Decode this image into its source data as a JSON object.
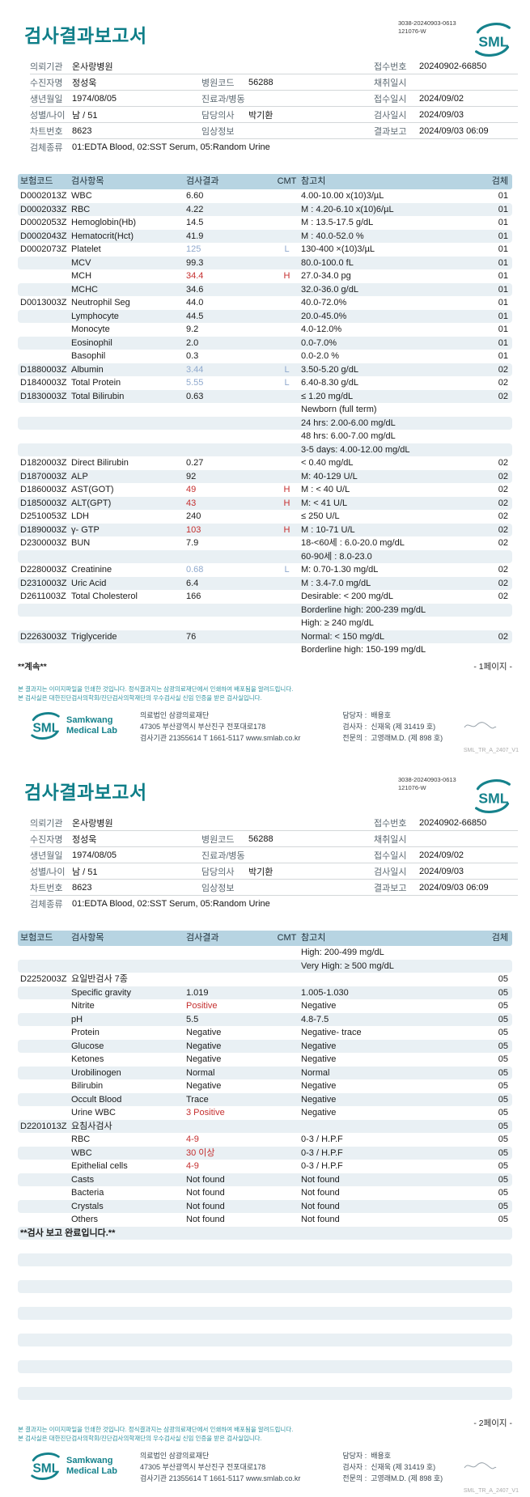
{
  "report": {
    "title": "검사결과보고서",
    "barcode_line1": "3038-20240903-0613",
    "barcode_line2": "121076-W",
    "logo_text": "SML",
    "patient": {
      "requesting_org_label": "의뢰기관",
      "requesting_org_value": "온사랑병원",
      "receipt_no_label": "접수번호",
      "receipt_no_value": "20240902-66850",
      "patient_name_label": "수진자명",
      "patient_name_value": "정성욱",
      "hospital_code_label": "병원코드",
      "hospital_code_value": "56288",
      "collection_dt_label": "채취일시",
      "collection_dt_value": "",
      "birth_date_label": "생년월일",
      "birth_date_value": "1974/08/05",
      "dept_ward_label": "진료과/병동",
      "dept_ward_value": "",
      "receipt_dt_label": "접수일시",
      "receipt_dt_value": "2024/09/02",
      "sex_age_label": "성별/나이",
      "sex_age_value": "남 / 51",
      "doctor_label": "담당의사",
      "doctor_value": "박기환",
      "test_dt_label": "검사일시",
      "test_dt_value": "2024/09/03",
      "chart_no_label": "차트번호",
      "chart_no_value": "8623",
      "clinical_info_label": "임상정보",
      "clinical_info_value": "",
      "report_dt_label": "결과보고",
      "report_dt_value": "2024/09/03 06:09",
      "specimen_label": "검체종류",
      "specimen_value": "01:EDTA Blood, 02:SST Serum, 05:Random Urine"
    },
    "columns": {
      "code": "보험코드",
      "item": "검사항목",
      "result": "검사결과",
      "cmt": "CMT",
      "ref": "참고치",
      "specimen": "검체"
    }
  },
  "pages": [
    {
      "continue_note": "**계속**",
      "page_label": "- 1페이지 -",
      "trailing_empty_rows": 0,
      "rows": [
        {
          "c": "D0002013Z",
          "i": "WBC",
          "r": "6.60",
          "f": "",
          "ref": "4.00-10.00 x(10)3/µL",
          "s": "01",
          "st": "n"
        },
        {
          "c": "D0002033Z",
          "i": "RBC",
          "r": "4.22",
          "f": "",
          "ref": "M : 4.20-6.10 x(10)6/µL",
          "s": "01",
          "st": "n"
        },
        {
          "c": "D0002053Z",
          "i": "Hemoglobin(Hb)",
          "r": "14.5",
          "f": "",
          "ref": "M : 13.5-17.5 g/dL",
          "s": "01",
          "st": "n"
        },
        {
          "c": "D0002043Z",
          "i": "Hematocrit(Hct)",
          "r": "41.9",
          "f": "",
          "ref": "M : 40.0-52.0 %",
          "s": "01",
          "st": "n"
        },
        {
          "c": "D0002073Z",
          "i": "Platelet",
          "r": "125",
          "f": "L",
          "ref": "130-400 ×(10)3/µL",
          "s": "01",
          "st": "l"
        },
        {
          "c": "",
          "i": "MCV",
          "r": "99.3",
          "f": "",
          "ref": "80.0-100.0 fL",
          "s": "01",
          "st": "n"
        },
        {
          "c": "",
          "i": "MCH",
          "r": "34.4",
          "f": "H",
          "ref": "27.0-34.0 pg",
          "s": "01",
          "st": "h"
        },
        {
          "c": "",
          "i": "MCHC",
          "r": "34.6",
          "f": "",
          "ref": "32.0-36.0 g/dL",
          "s": "01",
          "st": "n"
        },
        {
          "c": "D0013003Z",
          "i": "Neutrophil Seg",
          "r": "44.0",
          "f": "",
          "ref": "40.0-72.0%",
          "s": "01",
          "st": "n"
        },
        {
          "c": "",
          "i": "Lymphocyte",
          "r": "44.5",
          "f": "",
          "ref": "20.0-45.0%",
          "s": "01",
          "st": "n"
        },
        {
          "c": "",
          "i": "Monocyte",
          "r": "9.2",
          "f": "",
          "ref": "4.0-12.0%",
          "s": "01",
          "st": "n"
        },
        {
          "c": "",
          "i": "Eosinophil",
          "r": "2.0",
          "f": "",
          "ref": "0.0-7.0%",
          "s": "01",
          "st": "n"
        },
        {
          "c": "",
          "i": "Basophil",
          "r": "0.3",
          "f": "",
          "ref": "0.0-2.0 %",
          "s": "01",
          "st": "n"
        },
        {
          "c": "D1880003Z",
          "i": "Albumin",
          "r": "3.44",
          "f": "L",
          "ref": "3.50-5.20 g/dL",
          "s": "02",
          "st": "l"
        },
        {
          "c": "D1840003Z",
          "i": "Total Protein",
          "r": "5.55",
          "f": "L",
          "ref": "6.40-8.30 g/dL",
          "s": "02",
          "st": "l"
        },
        {
          "c": "D1830003Z",
          "i": "Total Bilirubin",
          "r": "0.63",
          "f": "",
          "ref": "≤ 1.20 mg/dL",
          "s": "02",
          "st": "n"
        },
        {
          "c": "",
          "i": "",
          "r": "",
          "f": "",
          "ref": "Newborn (full term)",
          "s": "",
          "st": "n"
        },
        {
          "c": "",
          "i": "",
          "r": "",
          "f": "",
          "ref": "24 hrs: 2.00-6.00 mg/dL",
          "s": "",
          "st": "n"
        },
        {
          "c": "",
          "i": "",
          "r": "",
          "f": "",
          "ref": "48 hrs: 6.00-7.00 mg/dL",
          "s": "",
          "st": "n"
        },
        {
          "c": "",
          "i": "",
          "r": "",
          "f": "",
          "ref": "3-5 days: 4.00-12.00 mg/dL",
          "s": "",
          "st": "n"
        },
        {
          "c": "D1820003Z",
          "i": "Direct Bilirubin",
          "r": "0.27",
          "f": "",
          "ref": "< 0.40 mg/dL",
          "s": "02",
          "st": "n"
        },
        {
          "c": "D1870003Z",
          "i": "ALP",
          "r": "92",
          "f": "",
          "ref": "M: 40-129 U/L",
          "s": "02",
          "st": "n"
        },
        {
          "c": "D1860003Z",
          "i": "AST(GOT)",
          "r": "49",
          "f": "H",
          "ref": "M : < 40 U/L",
          "s": "02",
          "st": "h"
        },
        {
          "c": "D1850003Z",
          "i": "ALT(GPT)",
          "r": "43",
          "f": "H",
          "ref": "M: < 41 U/L",
          "s": "02",
          "st": "h"
        },
        {
          "c": "D2510053Z",
          "i": "LDH",
          "r": "240",
          "f": "",
          "ref": "≤ 250 U/L",
          "s": "02",
          "st": "n"
        },
        {
          "c": "D1890003Z",
          "i": "γ- GTP",
          "r": "103",
          "f": "H",
          "ref": "M : 10-71 U/L",
          "s": "02",
          "st": "h"
        },
        {
          "c": "D2300003Z",
          "i": "BUN",
          "r": "7.9",
          "f": "",
          "ref": "18-<60세 : 6.0-20.0 mg/dL",
          "s": "02",
          "st": "n"
        },
        {
          "c": "",
          "i": "",
          "r": "",
          "f": "",
          "ref": "60-90세 : 8.0-23.0",
          "s": "",
          "st": "n"
        },
        {
          "c": "D2280003Z",
          "i": "Creatinine",
          "r": "0.68",
          "f": "L",
          "ref": "M: 0.70-1.30 mg/dL",
          "s": "02",
          "st": "l"
        },
        {
          "c": "D2310003Z",
          "i": "Uric Acid",
          "r": "6.4",
          "f": "",
          "ref": "M : 3.4-7.0 mg/dL",
          "s": "02",
          "st": "n"
        },
        {
          "c": "D2611003Z",
          "i": "Total Cholesterol",
          "r": "166",
          "f": "",
          "ref": "Desirable: < 200 mg/dL",
          "s": "02",
          "st": "n"
        },
        {
          "c": "",
          "i": "",
          "r": "",
          "f": "",
          "ref": "Borderline high: 200-239 mg/dL",
          "s": "",
          "st": "n"
        },
        {
          "c": "",
          "i": "",
          "r": "",
          "f": "",
          "ref": "High: ≥ 240 mg/dL",
          "s": "",
          "st": "n"
        },
        {
          "c": "D2263003Z",
          "i": "Triglyceride",
          "r": "76",
          "f": "",
          "ref": "Normal: < 150 mg/dL",
          "s": "02",
          "st": "n"
        },
        {
          "c": "",
          "i": "",
          "r": "",
          "f": "",
          "ref": "Borderline high: 150-199 mg/dL",
          "s": "",
          "st": "n"
        }
      ]
    },
    {
      "continue_note": "",
      "page_label": "- 2페이지 -",
      "trailing_empty_rows": 13,
      "rows": [
        {
          "c": "",
          "i": "",
          "r": "",
          "f": "",
          "ref": "High: 200-499 mg/dL",
          "s": "",
          "st": "n"
        },
        {
          "c": "",
          "i": "",
          "r": "",
          "f": "",
          "ref": "Very High: ≥ 500 mg/dL",
          "s": "",
          "st": "n"
        },
        {
          "c": "D2252003Z",
          "i": "요일반검사 7종",
          "r": "",
          "f": "",
          "ref": "",
          "s": "05",
          "st": "n"
        },
        {
          "c": "",
          "i": "Specific gravity",
          "r": "1.019",
          "f": "",
          "ref": "1.005-1.030",
          "s": "05",
          "st": "n"
        },
        {
          "c": "",
          "i": "Nitrite",
          "r": "Positive",
          "f": "",
          "ref": "Negative",
          "s": "05",
          "st": "h"
        },
        {
          "c": "",
          "i": "pH",
          "r": "5.5",
          "f": "",
          "ref": "4.8-7.5",
          "s": "05",
          "st": "n"
        },
        {
          "c": "",
          "i": "Protein",
          "r": "Negative",
          "f": "",
          "ref": "Negative- trace",
          "s": "05",
          "st": "n"
        },
        {
          "c": "",
          "i": "Glucose",
          "r": "Negative",
          "f": "",
          "ref": "Negative",
          "s": "05",
          "st": "n"
        },
        {
          "c": "",
          "i": "Ketones",
          "r": "Negative",
          "f": "",
          "ref": "Negative",
          "s": "05",
          "st": "n"
        },
        {
          "c": "",
          "i": "Urobilinogen",
          "r": "Normal",
          "f": "",
          "ref": "Normal",
          "s": "05",
          "st": "n"
        },
        {
          "c": "",
          "i": "Bilirubin",
          "r": "Negative",
          "f": "",
          "ref": "Negative",
          "s": "05",
          "st": "n"
        },
        {
          "c": "",
          "i": "Occult Blood",
          "r": "Trace",
          "f": "",
          "ref": "Negative",
          "s": "05",
          "st": "n"
        },
        {
          "c": "",
          "i": "Urine WBC",
          "r": "3 Positive",
          "f": "",
          "ref": "Negative",
          "s": "05",
          "st": "h"
        },
        {
          "c": "D2201013Z",
          "i": "요침사검사",
          "r": "",
          "f": "",
          "ref": "",
          "s": "05",
          "st": "n"
        },
        {
          "c": "",
          "i": "RBC",
          "r": "4-9",
          "f": "",
          "ref": "0-3 / H.P.F",
          "s": "05",
          "st": "h"
        },
        {
          "c": "",
          "i": "WBC",
          "r": "30 이상",
          "f": "",
          "ref": "0-3 / H.P.F",
          "s": "05",
          "st": "h"
        },
        {
          "c": "",
          "i": "Epithelial cells",
          "r": "4-9",
          "f": "",
          "ref": "0-3 / H.P.F",
          "s": "05",
          "st": "h"
        },
        {
          "c": "",
          "i": "Casts",
          "r": "Not found",
          "f": "",
          "ref": "Not found",
          "s": "05",
          "st": "n"
        },
        {
          "c": "",
          "i": "Bacteria",
          "r": "Not found",
          "f": "",
          "ref": "Not found",
          "s": "05",
          "st": "n"
        },
        {
          "c": "",
          "i": "Crystals",
          "r": "Not found",
          "f": "",
          "ref": "Not found",
          "s": "05",
          "st": "n"
        },
        {
          "c": "",
          "i": "Others",
          "r": "Not found",
          "f": "",
          "ref": "Not found",
          "s": "05",
          "st": "n"
        },
        {
          "note": "**검사 보고 완료입니다.**"
        }
      ]
    }
  ],
  "footer": {
    "notice_line1": "본 결과지는 이미지파일을 인쇄한 것입니다. 정식결과지는 삼광의료재단에서 인쇄하여 배포됨을 알려드립니다.",
    "notice_line2": "본 검사실은 대한진단검사의학회/진단검사의학재단의 우수검사실 신임 인증을 받은 검사실입니다.",
    "logo_text": "SML",
    "brand_line1": "Samkwang",
    "brand_line2": "Medical Lab",
    "org_name": "의료법인 삼광의료재단",
    "org_address": "47305 부산광역시 부산진구 전포대로178",
    "org_contact": "검사기관 21355614 T 1661-5117 www.smlab.co.kr",
    "manager_label": "담당자 :",
    "manager_name": "배용호",
    "examiner_label": "검사자 :",
    "examiner_name": "신재욱 (제 31419 호)",
    "specialist_label": "전문의 :",
    "specialist_name": "고영래M.D. (제 898 호)",
    "doc_code": "SML_TR_A_2407_V1"
  },
  "colors": {
    "accent_teal": "#0E7E88",
    "table_header_bg": "#B7D4E2",
    "row_stripe_bg": "#E9F0F4",
    "abnormal_high": "#C52F2F",
    "abnormal_low": "#8FA9CD"
  }
}
